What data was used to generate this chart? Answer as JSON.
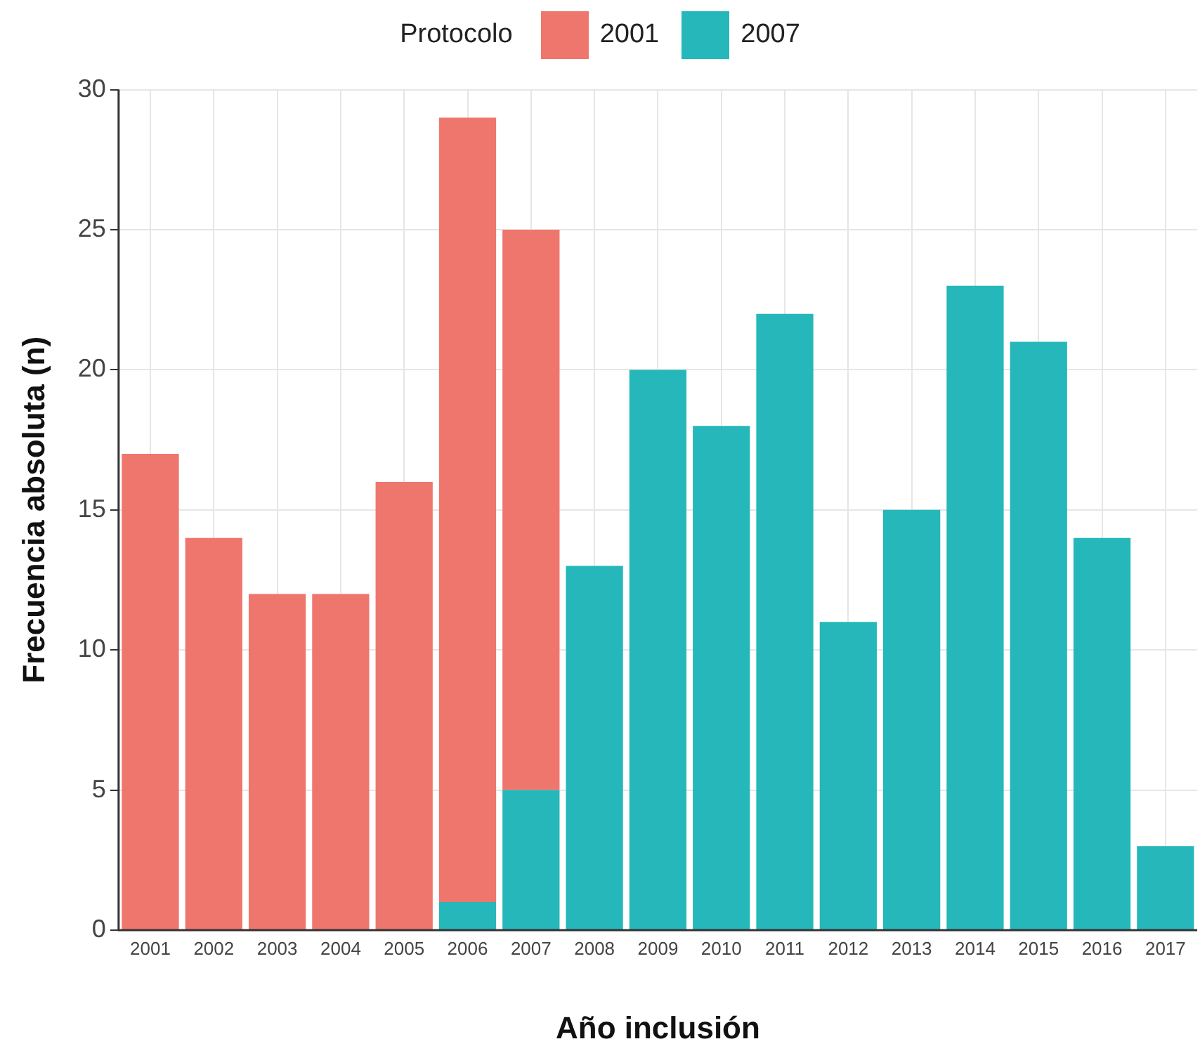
{
  "chart_data": {
    "type": "bar",
    "stacked": true,
    "xlabel": "Año inclusión",
    "ylabel": "Frecuencia absoluta (n)",
    "legend_title": "Protocolo",
    "legend": "top",
    "categories": [
      "2001",
      "2002",
      "2003",
      "2004",
      "2005",
      "2006",
      "2007",
      "2008",
      "2009",
      "2010",
      "2011",
      "2012",
      "2013",
      "2014",
      "2015",
      "2016",
      "2017"
    ],
    "series": [
      {
        "name": "2007",
        "color": "#26b7ba",
        "values": [
          null,
          null,
          null,
          null,
          null,
          1,
          5,
          13,
          20,
          18,
          22,
          11,
          15,
          23,
          21,
          14,
          3
        ]
      },
      {
        "name": "2001",
        "color": "#ef766d",
        "values": [
          17,
          14,
          12,
          12,
          16,
          28,
          20,
          null,
          null,
          null,
          null,
          null,
          null,
          null,
          null,
          null,
          null
        ]
      }
    ],
    "ylim": [
      0,
      30
    ],
    "yticks": [
      0,
      5,
      10,
      15,
      20,
      25,
      30
    ],
    "grid": true
  }
}
